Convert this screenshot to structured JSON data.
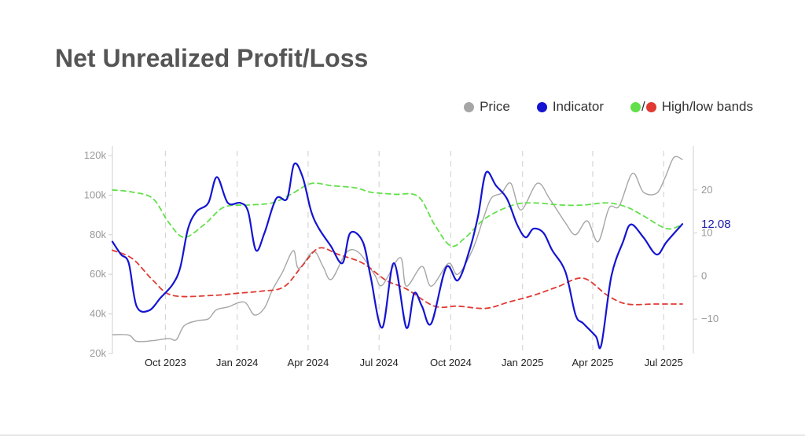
{
  "title": "Net Unrealized Profit/Loss",
  "legend": {
    "price": {
      "label": "Price",
      "color": "#a6a6a6"
    },
    "indicator": {
      "label": "Indicator",
      "color": "#1414d2"
    },
    "bands": {
      "label": "High/low bands",
      "separator": "/",
      "high_color": "#62e04a",
      "low_color": "#e03a32"
    }
  },
  "chart_data": {
    "type": "line",
    "title": "Net Unrealized Profit/Loss",
    "x_range": [
      "2023-07-25",
      "2025-07-25"
    ],
    "x_ticks": [
      {
        "date": "2023-10-01",
        "label": "Oct 2023"
      },
      {
        "date": "2024-01-01",
        "label": "Jan 2024"
      },
      {
        "date": "2024-04-01",
        "label": "Apr 2024"
      },
      {
        "date": "2024-07-01",
        "label": "Jul 2024"
      },
      {
        "date": "2024-10-01",
        "label": "Oct 2024"
      },
      {
        "date": "2025-01-01",
        "label": "Jan 2025"
      },
      {
        "date": "2025-04-01",
        "label": "Apr 2025"
      },
      {
        "date": "2025-07-01",
        "label": "Jul 2025"
      }
    ],
    "y_left": {
      "min": 20000,
      "max": 120000,
      "ticks": [
        {
          "v": 20000,
          "label": "20k"
        },
        {
          "v": 40000,
          "label": "40k"
        },
        {
          "v": 60000,
          "label": "60k"
        },
        {
          "v": 80000,
          "label": "80k"
        },
        {
          "v": 100000,
          "label": "100k"
        },
        {
          "v": 120000,
          "label": "120k"
        }
      ]
    },
    "y_right": {
      "min": -18,
      "max": 28,
      "ticks": [
        {
          "v": -10,
          "label": "−10"
        },
        {
          "v": 0,
          "label": "0"
        },
        {
          "v": 10,
          "label": "10"
        },
        {
          "v": 20,
          "label": "20"
        }
      ]
    },
    "grid": "vertical dashed at x ticks",
    "last_value_label": "12.08",
    "last_value": 12.08,
    "series": [
      {
        "name": "Price",
        "axis": "left",
        "color": "#a6a6a6",
        "style": "solid",
        "points": [
          [
            "2023-07-25",
            29500
          ],
          [
            "2023-08-15",
            29300
          ],
          [
            "2023-08-25",
            26200
          ],
          [
            "2023-09-15",
            26500
          ],
          [
            "2023-10-05",
            27600
          ],
          [
            "2023-10-15",
            27000
          ],
          [
            "2023-10-25",
            34000
          ],
          [
            "2023-11-10",
            36500
          ],
          [
            "2023-11-25",
            37500
          ],
          [
            "2023-12-05",
            42000
          ],
          [
            "2023-12-20",
            43500
          ],
          [
            "2024-01-10",
            46000
          ],
          [
            "2024-01-23",
            39500
          ],
          [
            "2024-02-05",
            43000
          ],
          [
            "2024-02-15",
            52000
          ],
          [
            "2024-02-28",
            61000
          ],
          [
            "2024-03-13",
            72000
          ],
          [
            "2024-03-20",
            63000
          ],
          [
            "2024-04-08",
            71500
          ],
          [
            "2024-04-20",
            64000
          ],
          [
            "2024-05-01",
            57500
          ],
          [
            "2024-05-20",
            71000
          ],
          [
            "2024-06-05",
            71000
          ],
          [
            "2024-06-25",
            60000
          ],
          [
            "2024-07-05",
            54500
          ],
          [
            "2024-07-28",
            68500
          ],
          [
            "2024-08-05",
            54000
          ],
          [
            "2024-08-25",
            64000
          ],
          [
            "2024-09-06",
            54000
          ],
          [
            "2024-09-28",
            65500
          ],
          [
            "2024-10-10",
            60000
          ],
          [
            "2024-10-29",
            72500
          ],
          [
            "2024-11-12",
            88500
          ],
          [
            "2024-11-22",
            98500
          ],
          [
            "2024-12-05",
            101000
          ],
          [
            "2024-12-17",
            106000
          ],
          [
            "2024-12-30",
            92500
          ],
          [
            "2025-01-20",
            106000
          ],
          [
            "2025-02-05",
            98000
          ],
          [
            "2025-02-25",
            86000
          ],
          [
            "2025-03-10",
            80000
          ],
          [
            "2025-03-25",
            87000
          ],
          [
            "2025-04-08",
            76500
          ],
          [
            "2025-04-22",
            93500
          ],
          [
            "2025-05-05",
            94500
          ],
          [
            "2025-05-22",
            111000
          ],
          [
            "2025-06-05",
            101500
          ],
          [
            "2025-06-22",
            101000
          ],
          [
            "2025-07-03",
            109000
          ],
          [
            "2025-07-14",
            119000
          ],
          [
            "2025-07-25",
            118000
          ]
        ]
      },
      {
        "name": "Indicator",
        "axis": "right",
        "color": "#1414d2",
        "style": "solid",
        "points": [
          [
            "2023-07-25",
            8
          ],
          [
            "2023-08-05",
            5
          ],
          [
            "2023-08-15",
            3
          ],
          [
            "2023-08-25",
            -7
          ],
          [
            "2023-09-10",
            -8
          ],
          [
            "2023-09-25",
            -5
          ],
          [
            "2023-10-10",
            -2
          ],
          [
            "2023-10-20",
            2
          ],
          [
            "2023-10-30",
            11
          ],
          [
            "2023-11-10",
            15
          ],
          [
            "2023-11-25",
            17
          ],
          [
            "2023-12-06",
            23
          ],
          [
            "2023-12-20",
            17
          ],
          [
            "2024-01-05",
            17
          ],
          [
            "2024-01-15",
            15
          ],
          [
            "2024-01-25",
            6
          ],
          [
            "2024-02-05",
            10
          ],
          [
            "2024-02-20",
            18
          ],
          [
            "2024-03-05",
            18
          ],
          [
            "2024-03-14",
            26
          ],
          [
            "2024-03-25",
            23
          ],
          [
            "2024-04-05",
            15
          ],
          [
            "2024-04-15",
            11
          ],
          [
            "2024-04-30",
            7
          ],
          [
            "2024-05-15",
            3
          ],
          [
            "2024-05-25",
            10
          ],
          [
            "2024-06-10",
            8
          ],
          [
            "2024-06-20",
            0
          ],
          [
            "2024-07-05",
            -12
          ],
          [
            "2024-07-20",
            3
          ],
          [
            "2024-08-05",
            -12
          ],
          [
            "2024-08-15",
            -4
          ],
          [
            "2024-08-25",
            -7
          ],
          [
            "2024-09-06",
            -11
          ],
          [
            "2024-09-25",
            2
          ],
          [
            "2024-10-10",
            -1
          ],
          [
            "2024-10-25",
            6
          ],
          [
            "2024-11-05",
            14
          ],
          [
            "2024-11-15",
            24
          ],
          [
            "2024-11-28",
            21
          ],
          [
            "2024-12-12",
            18
          ],
          [
            "2024-12-25",
            12
          ],
          [
            "2025-01-05",
            9
          ],
          [
            "2025-01-15",
            11
          ],
          [
            "2025-01-28",
            10
          ],
          [
            "2025-02-08",
            6
          ],
          [
            "2025-02-25",
            1
          ],
          [
            "2025-03-10",
            -9
          ],
          [
            "2025-03-20",
            -11
          ],
          [
            "2025-04-05",
            -14
          ],
          [
            "2025-04-12",
            -16
          ],
          [
            "2025-04-25",
            0
          ],
          [
            "2025-05-10",
            8
          ],
          [
            "2025-05-20",
            12
          ],
          [
            "2025-06-05",
            9
          ],
          [
            "2025-06-22",
            5
          ],
          [
            "2025-07-05",
            8
          ],
          [
            "2025-07-25",
            12.08
          ]
        ]
      },
      {
        "name": "High band",
        "axis": "right",
        "color": "#62e04a",
        "style": "dashed",
        "points": [
          [
            "2023-07-25",
            20
          ],
          [
            "2023-08-20",
            19.5
          ],
          [
            "2023-09-15",
            18
          ],
          [
            "2023-10-05",
            12.5
          ],
          [
            "2023-10-25",
            9
          ],
          [
            "2023-11-20",
            12
          ],
          [
            "2023-12-15",
            16
          ],
          [
            "2024-01-15",
            16.5
          ],
          [
            "2024-02-15",
            17
          ],
          [
            "2024-03-10",
            19
          ],
          [
            "2024-04-05",
            21.5
          ],
          [
            "2024-05-01",
            21
          ],
          [
            "2024-06-01",
            20.5
          ],
          [
            "2024-06-20",
            19.5
          ],
          [
            "2024-07-20",
            19
          ],
          [
            "2024-08-20",
            18.5
          ],
          [
            "2024-09-10",
            12
          ],
          [
            "2024-10-01",
            7
          ],
          [
            "2024-10-20",
            9
          ],
          [
            "2024-11-15",
            13.5
          ],
          [
            "2024-12-20",
            16.5
          ],
          [
            "2025-01-15",
            17
          ],
          [
            "2025-02-20",
            16.5
          ],
          [
            "2025-03-20",
            16.5
          ],
          [
            "2025-04-20",
            17
          ],
          [
            "2025-05-15",
            16
          ],
          [
            "2025-06-05",
            14
          ],
          [
            "2025-07-05",
            11
          ],
          [
            "2025-07-25",
            12
          ]
        ]
      },
      {
        "name": "Low band",
        "axis": "right",
        "color": "#e03a32",
        "style": "dashed",
        "points": [
          [
            "2023-07-25",
            6
          ],
          [
            "2023-08-20",
            4
          ],
          [
            "2023-09-15",
            -1
          ],
          [
            "2023-10-10",
            -4.5
          ],
          [
            "2023-12-01",
            -4.5
          ],
          [
            "2024-01-01",
            -4
          ],
          [
            "2024-02-01",
            -3.5
          ],
          [
            "2024-03-01",
            -2.5
          ],
          [
            "2024-03-25",
            2.5
          ],
          [
            "2024-04-15",
            6.5
          ],
          [
            "2024-05-10",
            5
          ],
          [
            "2024-06-10",
            3
          ],
          [
            "2024-07-10",
            -1
          ],
          [
            "2024-08-05",
            -3
          ],
          [
            "2024-09-10",
            -7
          ],
          [
            "2024-10-10",
            -7
          ],
          [
            "2024-11-15",
            -7.5
          ],
          [
            "2024-12-15",
            -6
          ],
          [
            "2025-01-15",
            -4.5
          ],
          [
            "2025-02-15",
            -2.5
          ],
          [
            "2025-03-20",
            -0.5
          ],
          [
            "2025-04-20",
            -4.5
          ],
          [
            "2025-05-15",
            -6.5
          ],
          [
            "2025-06-20",
            -6.5
          ],
          [
            "2025-07-25",
            -6.5
          ]
        ]
      }
    ]
  }
}
